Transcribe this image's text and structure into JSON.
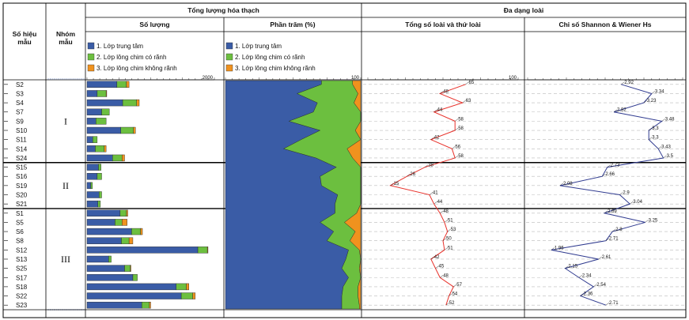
{
  "headers": {
    "sample_id": [
      "Số hiệu",
      "mẫu"
    ],
    "sample_group": [
      "Nhóm",
      "mẫu"
    ],
    "total_fossil": "Tổng lượng hóa thạch",
    "count": "Số lượng",
    "percent": "Phần trăm (%)",
    "diversity": "Đa dạng loài",
    "species_total": "Tổng số loài và thứ loài",
    "shannon": "Chỉ số Shannon & Wiener Hs"
  },
  "legend": [
    {
      "label": "1. Lớp trung tâm",
      "color": "#3a5ca6"
    },
    {
      "label": "2. Lớp lông chim có rãnh",
      "color": "#6cbf3f"
    },
    {
      "label": "3. Lớp lông chim không rãnh",
      "color": "#f0921e"
    }
  ],
  "colors": {
    "line_species": "#e8312a",
    "line_shannon": "#2f3a8f",
    "border": "#000000",
    "grid": "#bbbbbb"
  },
  "groups": [
    {
      "label": "I",
      "samples": [
        "S2",
        "S3",
        "S4",
        "S7",
        "S9",
        "S10",
        "S11",
        "S14",
        "S24"
      ]
    },
    {
      "label": "II",
      "samples": [
        "S15",
        "S16",
        "S19",
        "S20",
        "S21"
      ]
    },
    {
      "label": "III",
      "samples": [
        "S1",
        "S5",
        "S6",
        "S8",
        "S12",
        "S13",
        "S25",
        "S17",
        "S18",
        "S22",
        "S23"
      ]
    }
  ],
  "axes": {
    "count_max_label": "2000",
    "percent_max_label": "100",
    "species_max_label": "100"
  },
  "chart_data": {
    "type": "bar",
    "samples": [
      "S2",
      "S3",
      "S4",
      "S7",
      "S9",
      "S10",
      "S11",
      "S14",
      "S24",
      "S15",
      "S16",
      "S19",
      "S20",
      "S21",
      "S1",
      "S5",
      "S6",
      "S8",
      "S12",
      "S13",
      "S25",
      "S17",
      "S18",
      "S22",
      "S23"
    ],
    "series": [
      {
        "name": "1. Lớp trung tâm",
        "values": [
          470,
          160,
          560,
          230,
          140,
          530,
          90,
          130,
          400,
          180,
          160,
          60,
          190,
          170,
          520,
          440,
          700,
          540,
          1740,
          340,
          590,
          720,
          1400,
          1480,
          860
        ]
      },
      {
        "name": "2. Lớp lông chim có rãnh",
        "values": [
          150,
          140,
          220,
          120,
          160,
          200,
          70,
          140,
          150,
          40,
          70,
          25,
          40,
          40,
          100,
          110,
          140,
          120,
          150,
          40,
          90,
          70,
          160,
          180,
          120
        ]
      },
      {
        "name": "3. Lớp lông chim không rãnh",
        "values": [
          40,
          10,
          40,
          0,
          0,
          30,
          0,
          30,
          40,
          0,
          0,
          0,
          0,
          0,
          20,
          80,
          30,
          60,
          10,
          0,
          10,
          0,
          40,
          40,
          20
        ]
      }
    ],
    "percent": {
      "central": [
        71,
        53,
        68,
        65,
        47,
        70,
        56,
        43,
        67,
        82,
        70,
        71,
        83,
        81,
        81,
        70,
        80,
        75,
        91,
        89,
        86,
        91,
        87,
        86,
        86
      ],
      "pennate_raphe": [
        23,
        45,
        27,
        35,
        53,
        26,
        44,
        47,
        27,
        18,
        30,
        29,
        17,
        19,
        16,
        18,
        16,
        17,
        8,
        11,
        13,
        9,
        11,
        12,
        13
      ],
      "pennate_araphe": [
        6,
        2,
        5,
        0,
        0,
        4,
        0,
        10,
        6,
        0,
        0,
        0,
        0,
        0,
        3,
        12,
        4,
        8,
        1,
        0,
        1,
        0,
        2,
        2,
        1
      ]
    },
    "species_total": [
      65,
      48,
      63,
      44,
      58,
      58,
      42,
      56,
      58,
      38,
      26,
      15,
      41,
      44,
      48,
      51,
      53,
      50,
      51,
      42,
      45,
      48,
      57,
      54,
      52
    ],
    "shannon_hs": [
      2.92,
      3.34,
      3.23,
      2.82,
      3.48,
      3.3,
      3.3,
      3.43,
      3.5,
      2.73,
      2.66,
      2.08,
      2.9,
      3.04,
      2.69,
      3.25,
      2.8,
      2.71,
      1.96,
      2.61,
      2.15,
      2.34,
      2.54,
      2.36,
      2.71
    ],
    "xlim_count": [
      0,
      2000
    ],
    "xlim_percent": [
      0,
      100
    ],
    "xlim_species": [
      0,
      100
    ],
    "xlim_shannon": [
      1.7,
      3.7
    ]
  }
}
